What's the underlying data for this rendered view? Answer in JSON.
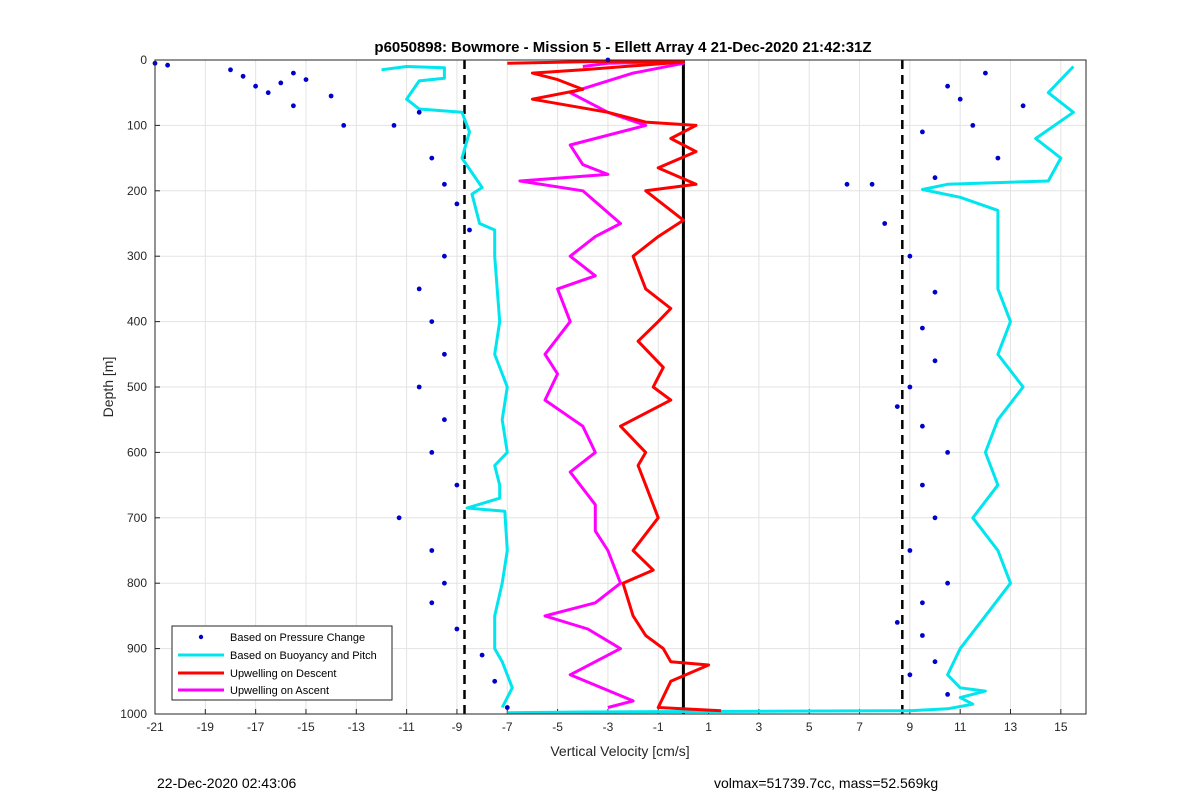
{
  "chart_data": {
    "type": "scatter",
    "title": "p6050898: Bowmore - Mission 5 - Ellett Array 4 21-Dec-2020 21:42:31Z",
    "xlabel": "Vertical Velocity [cm/s]",
    "ylabel": "Depth [m]",
    "xlim": [
      -21,
      16
    ],
    "ylim": [
      1000,
      0
    ],
    "y_reversed": true,
    "grid": true,
    "legend_position": "bottom-left",
    "x_ticks": [
      -21,
      -19,
      -17,
      -15,
      -13,
      -11,
      -9,
      -7,
      -5,
      -3,
      -1,
      1,
      3,
      5,
      7,
      9,
      11,
      13,
      15
    ],
    "y_ticks": [
      0,
      100,
      200,
      300,
      400,
      500,
      600,
      700,
      800,
      900,
      1000
    ],
    "reference_lines": [
      {
        "style": "dashed",
        "color": "#000000",
        "x": -8.7
      },
      {
        "style": "dashed",
        "color": "#000000",
        "x": 8.7
      },
      {
        "style": "solid",
        "color": "#000000",
        "x": 0
      }
    ],
    "series": [
      {
        "name": "Based on Pressure Change",
        "marker": "dot",
        "color": "#0000cc",
        "points": [
          [
            -21,
            5
          ],
          [
            -20.5,
            8
          ],
          [
            -18,
            15
          ],
          [
            -17.5,
            25
          ],
          [
            -17,
            40
          ],
          [
            -16.5,
            50
          ],
          [
            -16,
            35
          ],
          [
            -15.5,
            20
          ],
          [
            -15,
            30
          ],
          [
            -15.5,
            70
          ],
          [
            -14,
            55
          ],
          [
            -13.5,
            100
          ],
          [
            -11.5,
            100
          ],
          [
            -10.5,
            80
          ],
          [
            -10,
            150
          ],
          [
            -9.5,
            190
          ],
          [
            -9,
            220
          ],
          [
            -8.5,
            260
          ],
          [
            -9.5,
            300
          ],
          [
            -10.5,
            350
          ],
          [
            -10,
            400
          ],
          [
            -9.5,
            450
          ],
          [
            -10.5,
            500
          ],
          [
            -9.5,
            550
          ],
          [
            -10,
            600
          ],
          [
            -9,
            650
          ],
          [
            -11.3,
            700
          ],
          [
            -10,
            750
          ],
          [
            -9.5,
            800
          ],
          [
            -10,
            830
          ],
          [
            -9,
            870
          ],
          [
            -8,
            910
          ],
          [
            -7.5,
            950
          ],
          [
            -7,
            990
          ],
          [
            -3,
            0
          ],
          [
            6.5,
            190
          ],
          [
            7.5,
            190
          ],
          [
            8,
            250
          ],
          [
            9,
            300
          ],
          [
            10,
            355
          ],
          [
            9.5,
            410
          ],
          [
            10,
            460
          ],
          [
            9,
            500
          ],
          [
            8.5,
            530
          ],
          [
            9.5,
            560
          ],
          [
            10.5,
            600
          ],
          [
            9.5,
            650
          ],
          [
            10,
            700
          ],
          [
            9,
            750
          ],
          [
            10.5,
            800
          ],
          [
            9.5,
            830
          ],
          [
            8.5,
            860
          ],
          [
            9.5,
            880
          ],
          [
            10,
            920
          ],
          [
            9,
            940
          ],
          [
            10.5,
            970
          ],
          [
            10.5,
            40
          ],
          [
            11.5,
            100
          ],
          [
            12.5,
            150
          ],
          [
            12,
            20
          ],
          [
            13.5,
            70
          ],
          [
            11,
            60
          ],
          [
            10,
            180
          ],
          [
            9.5,
            110
          ]
        ]
      },
      {
        "name": "Based on Buoyancy and Pitch",
        "marker": "line",
        "color": "#00e5ee",
        "profiles": [
          {
            "points": [
              [
                -12,
                15
              ],
              [
                -11,
                10
              ],
              [
                -9.5,
                12
              ],
              [
                -9.5,
                28
              ],
              [
                -10.5,
                32
              ],
              [
                -11,
                60
              ],
              [
                -10.5,
                75
              ],
              [
                -8.8,
                80
              ],
              [
                -8.5,
                110
              ],
              [
                -8.8,
                150
              ],
              [
                -8,
                195
              ],
              [
                -8.4,
                205
              ],
              [
                -8.1,
                250
              ],
              [
                -7.5,
                260
              ],
              [
                -7.5,
                300
              ],
              [
                -7.3,
                400
              ],
              [
                -7.5,
                450
              ],
              [
                -7,
                500
              ],
              [
                -7.2,
                550
              ],
              [
                -7,
                600
              ],
              [
                -7.5,
                620
              ],
              [
                -7.3,
                650
              ],
              [
                -7.3,
                670
              ],
              [
                -8.6,
                685
              ],
              [
                -7.1,
                690
              ],
              [
                -7,
                750
              ],
              [
                -7.2,
                800
              ],
              [
                -7.5,
                850
              ],
              [
                -7.5,
                900
              ],
              [
                -7.2,
                920
              ],
              [
                -6.8,
                960
              ],
              [
                -7.2,
                990
              ]
            ]
          },
          {
            "points": [
              [
                15.5,
                10
              ],
              [
                14.5,
                50
              ],
              [
                15.5,
                80
              ],
              [
                14,
                120
              ],
              [
                15,
                150
              ],
              [
                14.5,
                185
              ],
              [
                10.5,
                190
              ],
              [
                9.5,
                198
              ],
              [
                11,
                210
              ],
              [
                12.5,
                230
              ],
              [
                12.5,
                300
              ],
              [
                12.5,
                350
              ],
              [
                13,
                400
              ],
              [
                12.5,
                450
              ],
              [
                13.5,
                500
              ],
              [
                12.5,
                550
              ],
              [
                12,
                600
              ],
              [
                12.5,
                650
              ],
              [
                11.5,
                700
              ],
              [
                12.5,
                750
              ],
              [
                13,
                800
              ],
              [
                12,
                850
              ],
              [
                11,
                900
              ],
              [
                10.5,
                940
              ],
              [
                11,
                960
              ],
              [
                12,
                965
              ],
              [
                11,
                975
              ],
              [
                11.5,
                985
              ],
              [
                10.5,
                992
              ],
              [
                9,
                995
              ],
              [
                2,
                996
              ],
              [
                -4,
                997
              ],
              [
                -7,
                998
              ]
            ]
          }
        ]
      },
      {
        "name": "Upwelling on Descent",
        "marker": "line",
        "color": "#ff0000",
        "points": [
          [
            -7,
            5
          ],
          [
            -3,
            2
          ],
          [
            0,
            3
          ],
          [
            -4,
            15
          ],
          [
            -6,
            20
          ],
          [
            -5,
            30
          ],
          [
            -4,
            45
          ],
          [
            -6,
            60
          ],
          [
            -3,
            80
          ],
          [
            -1.5,
            95
          ],
          [
            0.5,
            100
          ],
          [
            -0.5,
            120
          ],
          [
            0.5,
            140
          ],
          [
            -1,
            165
          ],
          [
            0.5,
            190
          ],
          [
            -1.5,
            200
          ],
          [
            0,
            245
          ],
          [
            -1,
            270
          ],
          [
            -2,
            300
          ],
          [
            -1.5,
            350
          ],
          [
            -0.5,
            380
          ],
          [
            -1,
            400
          ],
          [
            -1.8,
            430
          ],
          [
            -0.8,
            470
          ],
          [
            -1.2,
            500
          ],
          [
            -0.5,
            520
          ],
          [
            -2.5,
            560
          ],
          [
            -1.5,
            600
          ],
          [
            -1.8,
            620
          ],
          [
            -1.5,
            650
          ],
          [
            -1,
            700
          ],
          [
            -2,
            750
          ],
          [
            -1.2,
            780
          ],
          [
            -2.4,
            800
          ],
          [
            -2,
            850
          ],
          [
            -1.5,
            880
          ],
          [
            -0.8,
            900
          ],
          [
            -0.5,
            920
          ],
          [
            1,
            925
          ],
          [
            -0.5,
            950
          ],
          [
            -1,
            990
          ],
          [
            1.5,
            995
          ]
        ]
      },
      {
        "name": "Upwelling on Ascent",
        "marker": "line",
        "color": "#ff00ff",
        "points": [
          [
            -4,
            10
          ],
          [
            -3,
            5
          ],
          [
            -1,
            3
          ],
          [
            0,
            5
          ],
          [
            -2,
            20
          ],
          [
            -4.5,
            50
          ],
          [
            -3,
            80
          ],
          [
            -1.5,
            100
          ],
          [
            -4.5,
            130
          ],
          [
            -4,
            160
          ],
          [
            -3,
            175
          ],
          [
            -6.5,
            185
          ],
          [
            -4,
            200
          ],
          [
            -2.5,
            250
          ],
          [
            -3.5,
            270
          ],
          [
            -4.5,
            300
          ],
          [
            -3.5,
            330
          ],
          [
            -5,
            350
          ],
          [
            -4.5,
            400
          ],
          [
            -5.5,
            450
          ],
          [
            -5,
            480
          ],
          [
            -5.5,
            520
          ],
          [
            -4,
            560
          ],
          [
            -3.5,
            600
          ],
          [
            -4.5,
            630
          ],
          [
            -3.5,
            680
          ],
          [
            -3.5,
            720
          ],
          [
            -3,
            750
          ],
          [
            -2.5,
            800
          ],
          [
            -3.5,
            830
          ],
          [
            -5.5,
            850
          ],
          [
            -3.8,
            870
          ],
          [
            -2.5,
            900
          ],
          [
            -4.5,
            940
          ],
          [
            -2,
            980
          ],
          [
            -3,
            990
          ]
        ]
      }
    ]
  },
  "figure": {
    "title": "p6050898: Bowmore - Mission 5 - Ellett Array 4 21-Dec-2020 21:42:31Z",
    "xlabel": "Vertical Velocity [cm/s]",
    "ylabel": "Depth [m]",
    "legend": [
      {
        "label": "Based on Pressure Change",
        "color": "#0000cc"
      },
      {
        "label": "Based on Buoyancy and Pitch",
        "color": "#00e5ee"
      },
      {
        "label": "Upwelling on Descent",
        "color": "#ff0000"
      },
      {
        "label": "Upwelling on Ascent",
        "color": "#ff00ff"
      }
    ],
    "footer_left": "22-Dec-2020 02:43:06",
    "footer_right": "volmax=51739.7cc, mass=52.569kg"
  }
}
